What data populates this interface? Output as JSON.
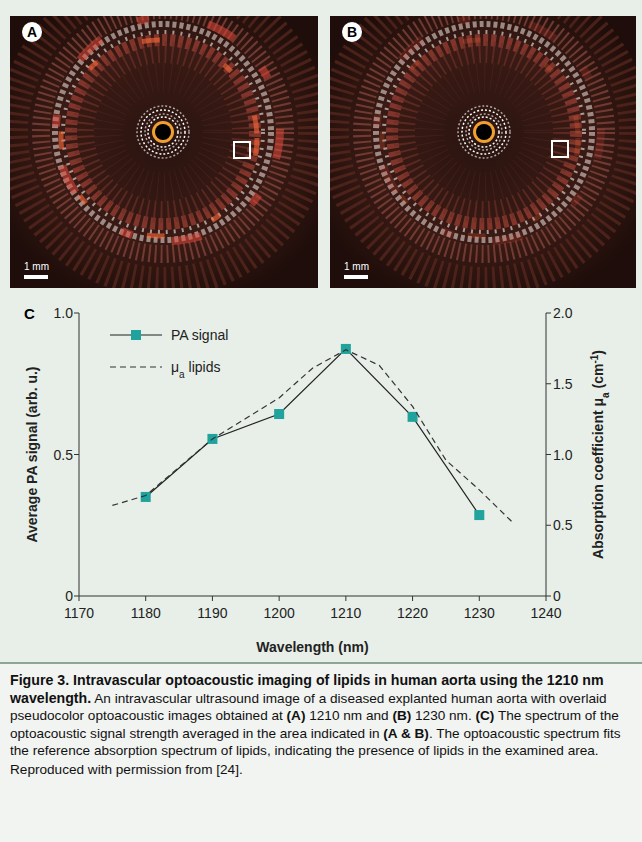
{
  "panels": [
    {
      "label": "A",
      "scale_bar": "1 mm"
    },
    {
      "label": "B",
      "scale_bar": "1 mm"
    },
    {
      "label": "C"
    }
  ],
  "chart_data": {
    "type": "line",
    "x_label": "Wavelength (nm)",
    "y_label": "Average PA signal (arb. u.)",
    "y2_label": [
      "Absorption coefficient μ",
      "a",
      " (cm",
      "-1",
      ")"
    ],
    "xlim": [
      1170,
      1240
    ],
    "xticks": [
      1170,
      1180,
      1190,
      1200,
      1210,
      1220,
      1230,
      1240
    ],
    "ylim": [
      0,
      1
    ],
    "yticks": [
      0,
      0.5,
      {
        "value": 1,
        "label": "1.0"
      }
    ],
    "y2lim": [
      0,
      2
    ],
    "y2ticks": [
      0,
      0.5,
      {
        "value": 1,
        "label": "1.0"
      },
      1.5,
      {
        "value": 2,
        "label": "2.0"
      }
    ],
    "grid": false,
    "legend": "upper left",
    "series": [
      {
        "name": "PA signal",
        "color": "#1fa39c",
        "marker": "square",
        "line_style": "solid",
        "x": [
          1180,
          1190,
          1200,
          1210,
          1220,
          1230
        ],
        "values": [
          0.35,
          0.555,
          0.643,
          0.873,
          0.633,
          0.286
        ]
      },
      {
        "name": "μa lipids",
        "color": "#333333",
        "marker": "none",
        "line_style": "dashed",
        "axis": "y2",
        "x": [
          1175,
          1180,
          1190,
          1200,
          1205,
          1210,
          1215,
          1220,
          1225,
          1230,
          1235
        ],
        "values": [
          0.64,
          0.71,
          1.11,
          1.4,
          1.61,
          1.74,
          1.63,
          1.34,
          0.96,
          0.75,
          0.52
        ]
      }
    ]
  },
  "caption": {
    "title": "Figure 3. Intravascular optoacoustic imaging of lipids in human aorta using the 1210 nm wavelength.",
    "body": [
      "An intravascular ultrasound image of a diseased explanted human aorta with overlaid pseudocolor optoacoustic images obtained at ",
      "(A)",
      " 1210 nm and ",
      "(B)",
      " 1230 nm. ",
      "(C)",
      " The spectrum of the optoacoustic signal strength averaged in the area indicated in ",
      "(A & B)",
      ". The optoacoustic spectrum fits the reference absorption spectrum of lipids, indicating the presence of lipids in the examined area."
    ],
    "credit": "Reproduced with permission from [24]."
  }
}
